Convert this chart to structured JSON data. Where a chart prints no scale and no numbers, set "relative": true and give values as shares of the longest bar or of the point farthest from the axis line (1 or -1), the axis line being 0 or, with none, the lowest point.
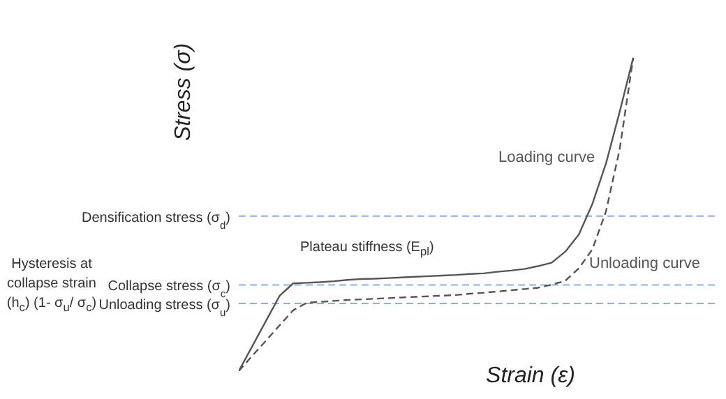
{
  "chart_data": {
    "type": "line",
    "relative": true,
    "xlabel": "Strain (ε)",
    "ylabel": "Stress (σ)",
    "marker": "none",
    "legend": false,
    "grid": false,
    "categories": [
      null,
      null,
      null,
      null,
      null,
      null,
      null,
      null,
      null,
      null,
      null,
      null,
      null,
      null,
      null,
      null,
      null,
      null,
      null,
      null,
      null,
      null,
      null,
      null,
      null,
      null,
      null,
      null,
      null,
      null,
      null,
      null,
      null,
      null,
      null,
      null
    ],
    "series": [
      {
        "name": "Loading curve",
        "color": "#555555",
        "line_style": "solid",
        "values": [
          0,
          0.08,
          0.16,
          0.24,
          0.28,
          0.282,
          0.284,
          0.287,
          0.291,
          0.294,
          0.295,
          0.297,
          0.299,
          0.301,
          0.303,
          0.305,
          0.307,
          0.31,
          0.312,
          0.317,
          0.321,
          0.326,
          0.335,
          0.346,
          0.381,
          0.436,
          0.534,
          0.663,
          0.827,
          1,
          null,
          null,
          null,
          null,
          null,
          null
        ]
      },
      {
        "name": "Unloading curve",
        "color": "#555555",
        "line_style": "dashed",
        "values": [
          0,
          0.049,
          0.097,
          0.146,
          0.194,
          0.218,
          0.221,
          0.224,
          0.227,
          0.229,
          0.231,
          0.233,
          0.235,
          0.237,
          0.239,
          0.241,
          0.243,
          0.247,
          0.25,
          0.254,
          0.258,
          0.262,
          0.266,
          0.276,
          0.288,
          0.328,
          0.389,
          0.51,
          0.707,
          1,
          null,
          null,
          null,
          null,
          null,
          null
        ]
      }
    ],
    "ref_lines": [
      {
        "axis": "y",
        "value": 0.495,
        "label": "Densification stress (σ$_{d}$)",
        "color": "#8fb0dc",
        "line_style": "dashed"
      },
      {
        "axis": "y",
        "value": 0.275,
        "label": "Collapse stress (σ$_{c}$)",
        "color": "#8fb0dc",
        "line_style": "dashed"
      },
      {
        "axis": "y",
        "value": 0.216,
        "label": "Unloading stress (σ$_{u}$)",
        "color": "#8fb0dc",
        "line_style": "dashed"
      }
    ],
    "annotations": [
      "Plateau stiffness (E$_{pl}$)",
      "Hysteresis at collapse strain (h$_{c}$) (1- σ$_{u}$/ σ$_{c}$)"
    ]
  }
}
